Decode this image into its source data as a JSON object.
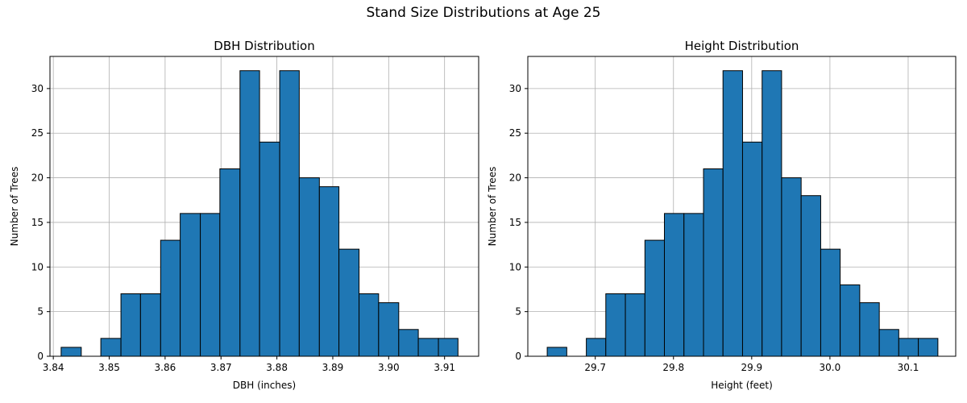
{
  "figure_title": "Stand Size Distributions at Age 25",
  "colors": {
    "bar_fill": "#1f77b4",
    "bar_edge": "#000000",
    "grid": "#b0b0b0"
  },
  "chart_data": [
    {
      "type": "bar",
      "title": "DBH Distribution",
      "xlabel": "DBH (inches)",
      "ylabel": "Number of Trees",
      "grid": true,
      "xlim": [
        3.8394,
        3.9161
      ],
      "ylim": [
        0,
        33.6
      ],
      "xticks": [
        3.84,
        3.85,
        3.86,
        3.87,
        3.88,
        3.89,
        3.9,
        3.91
      ],
      "xtick_labels": [
        "3.84",
        "3.85",
        "3.86",
        "3.87",
        "3.88",
        "3.89",
        "3.90",
        "3.91"
      ],
      "yticks": [
        0,
        5,
        10,
        15,
        20,
        25,
        30
      ],
      "ytick_labels": [
        "0",
        "5",
        "10",
        "15",
        "20",
        "25",
        "30"
      ],
      "bin_edges": [
        3.8414,
        3.845,
        3.8485,
        3.8521,
        3.8556,
        3.8592,
        3.8627,
        3.8663,
        3.8698,
        3.8734,
        3.8769,
        3.8805,
        3.884,
        3.8876,
        3.8911,
        3.8947,
        3.8982,
        3.9018,
        3.9053,
        3.9089,
        3.9124
      ],
      "values": [
        1,
        0,
        2,
        7,
        7,
        13,
        16,
        16,
        21,
        32,
        24,
        32,
        20,
        19,
        12,
        7,
        6,
        3,
        2,
        2
      ]
    },
    {
      "type": "bar",
      "title": "Height Distribution",
      "xlabel": "Height (feet)",
      "ylabel": "Number of Trees",
      "grid": true,
      "xlim": [
        29.6138,
        30.1608
      ],
      "ylim": [
        0,
        33.6
      ],
      "xticks": [
        29.7,
        29.8,
        29.9,
        30.0,
        30.1
      ],
      "xtick_labels": [
        "29.7",
        "29.8",
        "29.9",
        "30.0",
        "30.1"
      ],
      "yticks": [
        0,
        5,
        10,
        15,
        20,
        25,
        30
      ],
      "ytick_labels": [
        "0",
        "5",
        "10",
        "15",
        "20",
        "25",
        "30"
      ],
      "bin_edges": [
        29.6386,
        29.6636,
        29.6886,
        29.7135,
        29.7385,
        29.7635,
        29.7884,
        29.8134,
        29.8384,
        29.8633,
        29.8883,
        29.9133,
        29.9382,
        29.9632,
        29.9882,
        30.0131,
        30.0381,
        30.0631,
        30.088,
        30.113,
        30.138
      ],
      "values": [
        1,
        0,
        2,
        7,
        7,
        13,
        16,
        16,
        21,
        32,
        24,
        32,
        20,
        18,
        12,
        8,
        6,
        3,
        2,
        2
      ]
    }
  ]
}
